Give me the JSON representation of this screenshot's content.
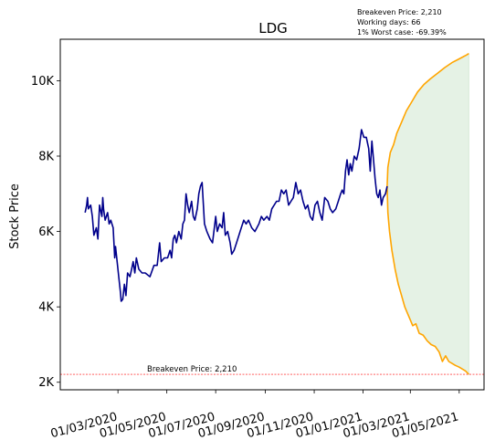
{
  "stats": {
    "breakeven": "Breakeven Price: 2,210",
    "working_days": "Working days: 66",
    "worst_case": "1% Worst case: -69.39%"
  },
  "chart_data": {
    "type": "line",
    "title": "LDG",
    "xlabel": "",
    "ylabel": "Stock Price",
    "x_range": [
      "2019-12-20",
      "2021-06-01"
    ],
    "ylim": [
      1800,
      11100
    ],
    "y_ticks": [
      2000,
      4000,
      6000,
      8000,
      10000
    ],
    "y_tick_labels": [
      "2K",
      "4K",
      "6K",
      "8K",
      "10K"
    ],
    "x_ticks": [
      "2020-03-01",
      "2020-05-01",
      "2020-07-01",
      "2020-09-01",
      "2020-11-01",
      "2021-01-01",
      "2021-03-01",
      "2021-05-01"
    ],
    "x_tick_labels": [
      "01/03/2020",
      "01/05/2020",
      "01/07/2020",
      "01/09/2020",
      "01/11/2020",
      "01/01/2021",
      "01/03/2021",
      "01/05/2021"
    ],
    "grid": false,
    "colors": {
      "history": "#00008b",
      "bounds": "#ffa500",
      "band": "#e5f2e5",
      "breakeven": "#ff0000"
    },
    "series": [
      {
        "role": "history",
        "points": [
          [
            "2020-01-20",
            6500
          ],
          [
            "2020-01-22",
            6700
          ],
          [
            "2020-01-23",
            6900
          ],
          [
            "2020-01-24",
            6600
          ],
          [
            "2020-01-27",
            6700
          ],
          [
            "2020-01-29",
            6400
          ],
          [
            "2020-01-31",
            5900
          ],
          [
            "2020-02-03",
            6100
          ],
          [
            "2020-02-05",
            5800
          ],
          [
            "2020-02-07",
            6700
          ],
          [
            "2020-02-10",
            6400
          ],
          [
            "2020-02-11",
            6900
          ],
          [
            "2020-02-12",
            6600
          ],
          [
            "2020-02-14",
            6300
          ],
          [
            "2020-02-17",
            6500
          ],
          [
            "2020-02-19",
            6200
          ],
          [
            "2020-02-21",
            6300
          ],
          [
            "2020-02-24",
            6100
          ],
          [
            "2020-02-26",
            5300
          ],
          [
            "2020-02-27",
            5600
          ],
          [
            "2020-03-02",
            4800
          ],
          [
            "2020-03-04",
            4400
          ],
          [
            "2020-03-05",
            4150
          ],
          [
            "2020-03-07",
            4200
          ],
          [
            "2020-03-09",
            4600
          ],
          [
            "2020-03-11",
            4300
          ],
          [
            "2020-03-13",
            4900
          ],
          [
            "2020-03-16",
            4800
          ],
          [
            "2020-03-18",
            5000
          ],
          [
            "2020-03-20",
            5200
          ],
          [
            "2020-03-22",
            4900
          ],
          [
            "2020-03-24",
            5300
          ],
          [
            "2020-03-27",
            5000
          ],
          [
            "2020-03-31",
            4900
          ],
          [
            "2020-04-04",
            4900
          ],
          [
            "2020-04-10",
            4800
          ],
          [
            "2020-04-15",
            5100
          ],
          [
            "2020-04-19",
            5100
          ],
          [
            "2020-04-22",
            5700
          ],
          [
            "2020-04-24",
            5200
          ],
          [
            "2020-04-28",
            5300
          ],
          [
            "2020-05-02",
            5300
          ],
          [
            "2020-05-05",
            5500
          ],
          [
            "2020-05-07",
            5300
          ],
          [
            "2020-05-09",
            5800
          ],
          [
            "2020-05-11",
            5900
          ],
          [
            "2020-05-13",
            5700
          ],
          [
            "2020-05-16",
            6000
          ],
          [
            "2020-05-19",
            5800
          ],
          [
            "2020-05-21",
            6200
          ],
          [
            "2020-05-23",
            6300
          ],
          [
            "2020-05-25",
            7000
          ],
          [
            "2020-05-27",
            6700
          ],
          [
            "2020-05-29",
            6500
          ],
          [
            "2020-06-01",
            6800
          ],
          [
            "2020-06-03",
            6400
          ],
          [
            "2020-06-05",
            6300
          ],
          [
            "2020-06-08",
            6600
          ],
          [
            "2020-06-10",
            7000
          ],
          [
            "2020-06-12",
            7200
          ],
          [
            "2020-06-14",
            7300
          ],
          [
            "2020-06-17",
            6200
          ],
          [
            "2020-06-20",
            6000
          ],
          [
            "2020-06-24",
            5800
          ],
          [
            "2020-06-27",
            5700
          ],
          [
            "2020-07-01",
            6400
          ],
          [
            "2020-07-03",
            6000
          ],
          [
            "2020-07-06",
            6200
          ],
          [
            "2020-07-09",
            6100
          ],
          [
            "2020-07-11",
            6500
          ],
          [
            "2020-07-13",
            5900
          ],
          [
            "2020-07-16",
            6000
          ],
          [
            "2020-07-19",
            5700
          ],
          [
            "2020-07-21",
            5400
          ],
          [
            "2020-07-24",
            5500
          ],
          [
            "2020-07-27",
            5700
          ],
          [
            "2020-07-30",
            5900
          ],
          [
            "2020-08-02",
            6100
          ],
          [
            "2020-08-05",
            6300
          ],
          [
            "2020-08-08",
            6200
          ],
          [
            "2020-08-11",
            6300
          ],
          [
            "2020-08-15",
            6100
          ],
          [
            "2020-08-19",
            6000
          ],
          [
            "2020-08-24",
            6200
          ],
          [
            "2020-08-27",
            6400
          ],
          [
            "2020-08-30",
            6300
          ],
          [
            "2020-09-03",
            6400
          ],
          [
            "2020-09-06",
            6300
          ],
          [
            "2020-09-09",
            6600
          ],
          [
            "2020-09-12",
            6700
          ],
          [
            "2020-09-15",
            6800
          ],
          [
            "2020-09-18",
            6800
          ],
          [
            "2020-09-21",
            7100
          ],
          [
            "2020-09-24",
            7000
          ],
          [
            "2020-09-27",
            7100
          ],
          [
            "2020-09-30",
            6700
          ],
          [
            "2020-10-03",
            6800
          ],
          [
            "2020-10-06",
            6900
          ],
          [
            "2020-10-09",
            7300
          ],
          [
            "2020-10-12",
            7000
          ],
          [
            "2020-10-15",
            7100
          ],
          [
            "2020-10-18",
            6800
          ],
          [
            "2020-10-21",
            6600
          ],
          [
            "2020-10-24",
            6700
          ],
          [
            "2020-10-27",
            6400
          ],
          [
            "2020-10-30",
            6300
          ],
          [
            "2020-11-02",
            6700
          ],
          [
            "2020-11-05",
            6800
          ],
          [
            "2020-11-08",
            6500
          ],
          [
            "2020-11-11",
            6300
          ],
          [
            "2020-11-14",
            6900
          ],
          [
            "2020-11-18",
            6800
          ],
          [
            "2020-11-21",
            6600
          ],
          [
            "2020-11-24",
            6500
          ],
          [
            "2020-11-28",
            6600
          ],
          [
            "2020-12-01",
            6800
          ],
          [
            "2020-12-04",
            7000
          ],
          [
            "2020-12-06",
            7100
          ],
          [
            "2020-12-08",
            7000
          ],
          [
            "2020-12-10",
            7600
          ],
          [
            "2020-12-12",
            7900
          ],
          [
            "2020-12-14",
            7500
          ],
          [
            "2020-12-16",
            7800
          ],
          [
            "2020-12-18",
            7600
          ],
          [
            "2020-12-21",
            8000
          ],
          [
            "2020-12-24",
            7900
          ],
          [
            "2020-12-27",
            8200
          ],
          [
            "2020-12-30",
            8700
          ],
          [
            "2021-01-02",
            8500
          ],
          [
            "2021-01-05",
            8500
          ],
          [
            "2021-01-08",
            8200
          ],
          [
            "2021-01-10",
            7600
          ],
          [
            "2021-01-12",
            8400
          ],
          [
            "2021-01-14",
            7900
          ],
          [
            "2021-01-16",
            7400
          ],
          [
            "2021-01-18",
            7000
          ],
          [
            "2021-01-20",
            6900
          ],
          [
            "2021-01-22",
            7100
          ],
          [
            "2021-01-24",
            6700
          ],
          [
            "2021-01-26",
            6900
          ],
          [
            "2021-01-29",
            7000
          ],
          [
            "2021-01-31",
            7200
          ]
        ]
      },
      {
        "role": "upper-bound",
        "points": [
          [
            "2021-01-31",
            7200
          ],
          [
            "2021-02-01",
            7700
          ],
          [
            "2021-02-04",
            8100
          ],
          [
            "2021-02-08",
            8300
          ],
          [
            "2021-02-12",
            8600
          ],
          [
            "2021-02-18",
            8900
          ],
          [
            "2021-02-24",
            9200
          ],
          [
            "2021-03-03",
            9450
          ],
          [
            "2021-03-10",
            9700
          ],
          [
            "2021-03-18",
            9900
          ],
          [
            "2021-03-26",
            10050
          ],
          [
            "2021-04-04",
            10200
          ],
          [
            "2021-04-13",
            10350
          ],
          [
            "2021-04-22",
            10480
          ],
          [
            "2021-05-01",
            10580
          ],
          [
            "2021-05-10",
            10680
          ],
          [
            "2021-05-13",
            10720
          ]
        ]
      },
      {
        "role": "lower-bound",
        "points": [
          [
            "2021-01-31",
            7200
          ],
          [
            "2021-02-01",
            6500
          ],
          [
            "2021-02-03",
            6000
          ],
          [
            "2021-02-06",
            5500
          ],
          [
            "2021-02-10",
            5000
          ],
          [
            "2021-02-14",
            4600
          ],
          [
            "2021-02-18",
            4300
          ],
          [
            "2021-02-22",
            4000
          ],
          [
            "2021-02-26",
            3800
          ],
          [
            "2021-03-02",
            3600
          ],
          [
            "2021-03-04",
            3500
          ],
          [
            "2021-03-08",
            3550
          ],
          [
            "2021-03-12",
            3300
          ],
          [
            "2021-03-17",
            3250
          ],
          [
            "2021-03-22",
            3100
          ],
          [
            "2021-03-27",
            3000
          ],
          [
            "2021-04-01",
            2950
          ],
          [
            "2021-04-06",
            2800
          ],
          [
            "2021-04-10",
            2550
          ],
          [
            "2021-04-14",
            2700
          ],
          [
            "2021-04-18",
            2550
          ],
          [
            "2021-04-22",
            2500
          ],
          [
            "2021-04-26",
            2450
          ],
          [
            "2021-05-01",
            2400
          ],
          [
            "2021-05-05",
            2350
          ],
          [
            "2021-05-09",
            2300
          ],
          [
            "2021-05-13",
            2210
          ]
        ]
      }
    ],
    "reference_line": {
      "y": 2210,
      "label": "Breakeven Price: 2,210",
      "style": "dashed"
    }
  }
}
